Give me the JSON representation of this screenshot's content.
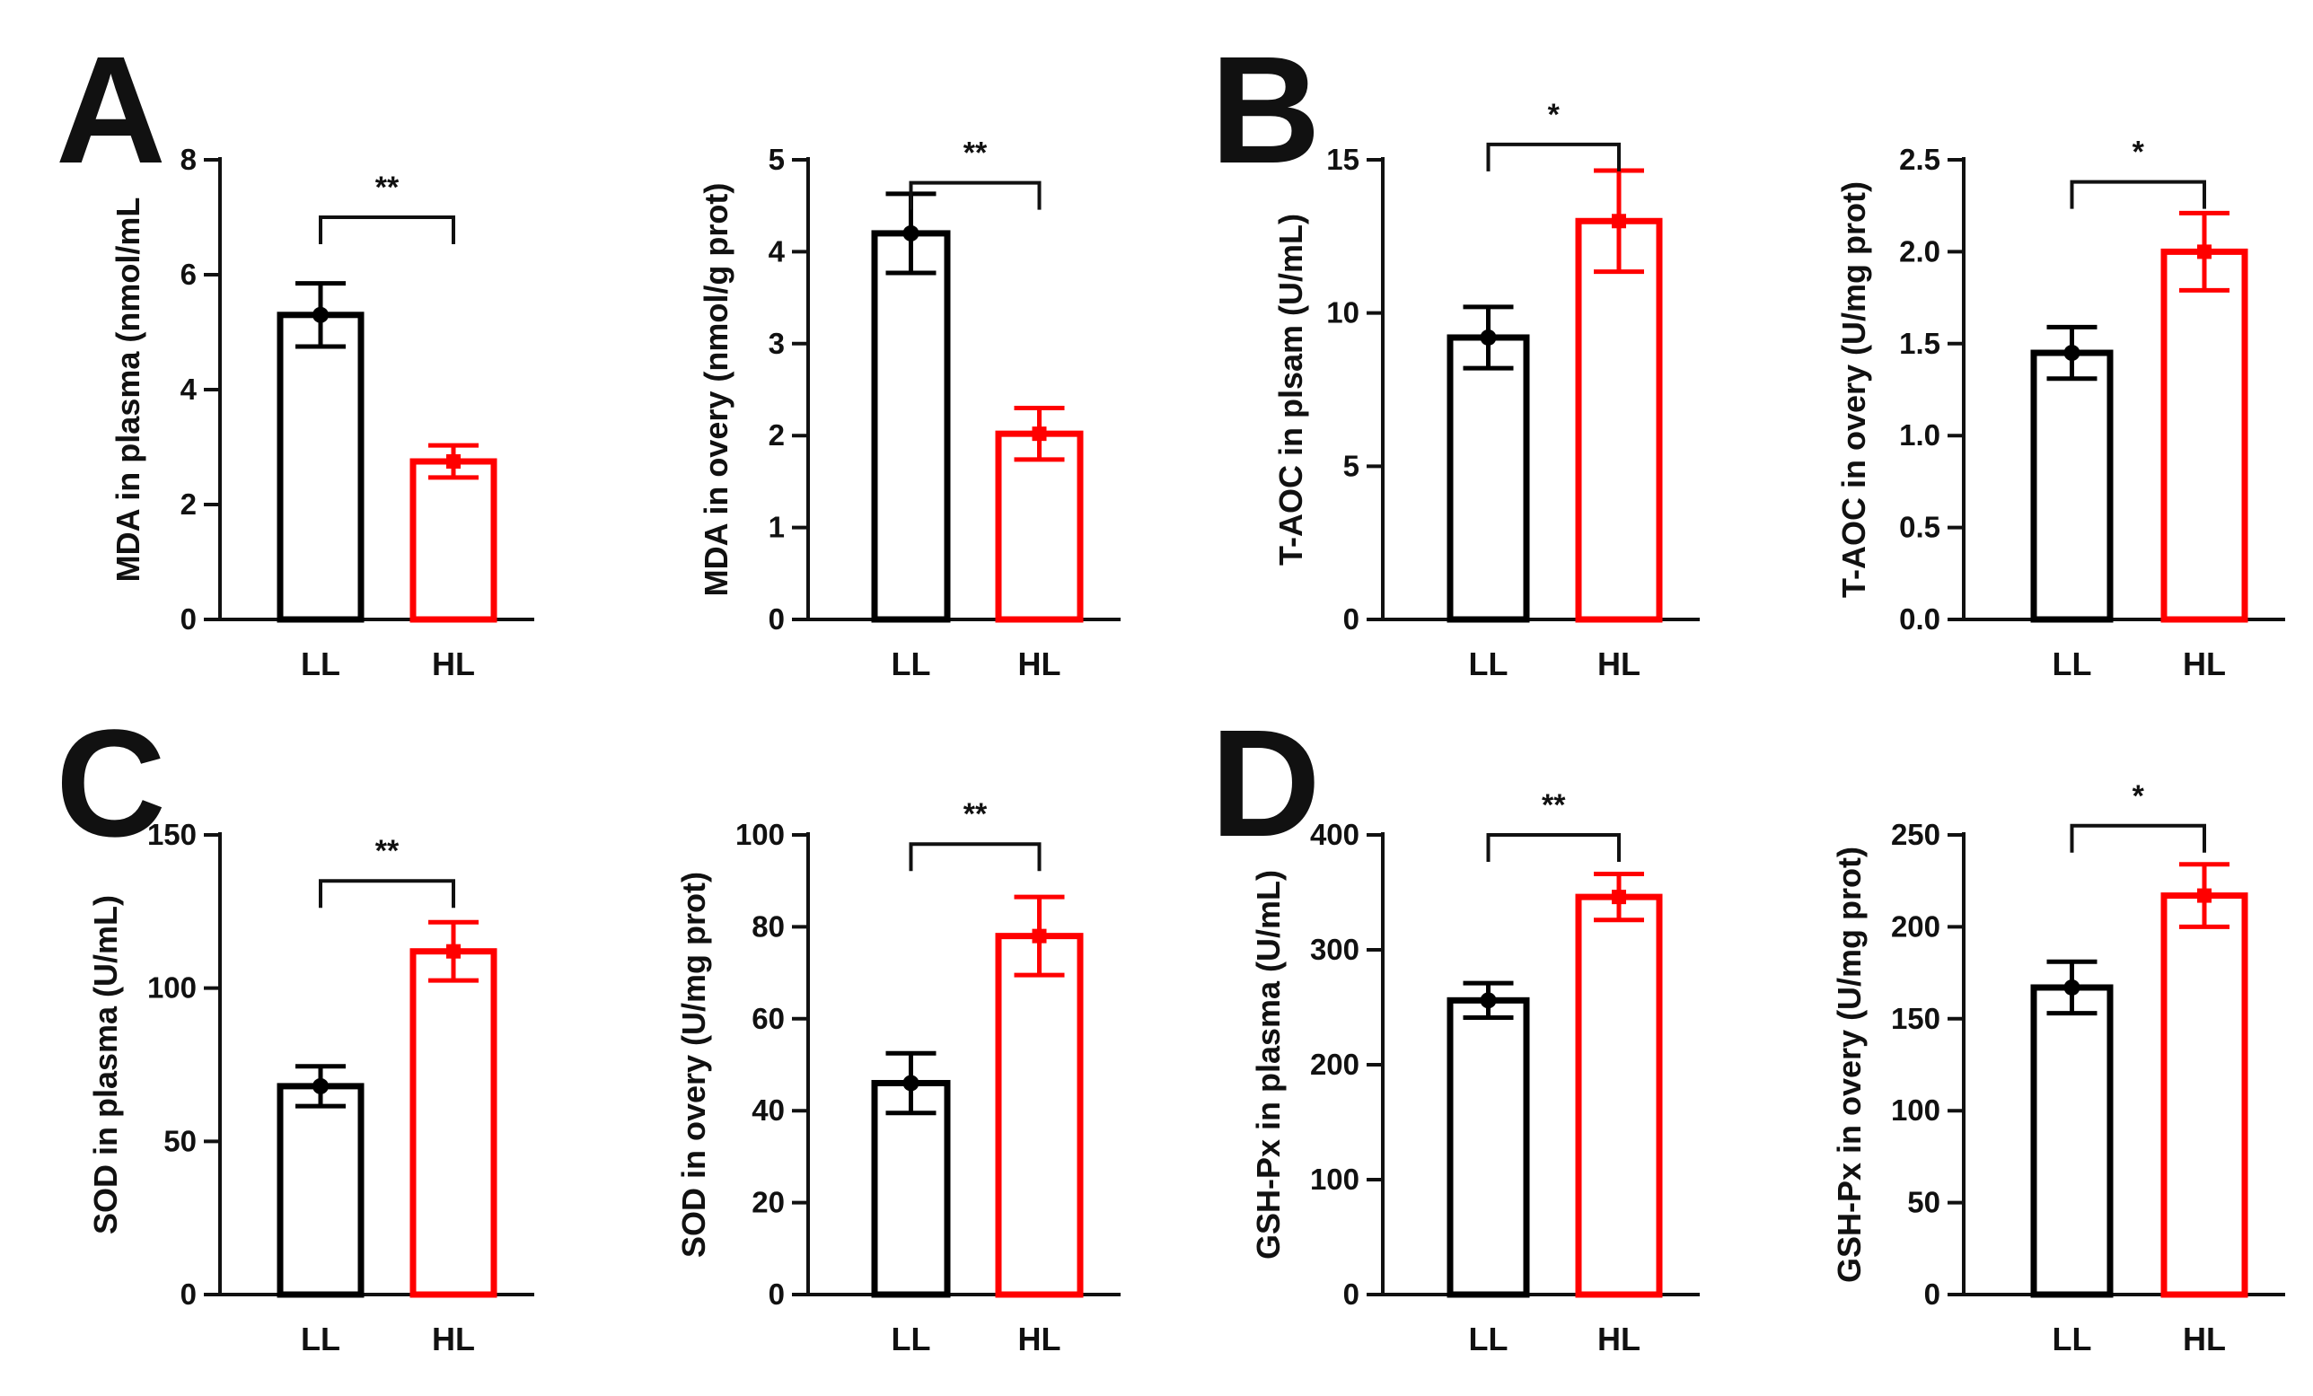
{
  "panels": [
    {
      "letter": "A"
    },
    {
      "letter": "B"
    },
    {
      "letter": "C"
    },
    {
      "letter": "D"
    }
  ],
  "colors": {
    "LL": "#000000",
    "HL": "#ff0000",
    "axis": "#111111"
  },
  "chart_data": [
    {
      "panel": "A",
      "type": "bar",
      "categories": [
        "LL",
        "HL"
      ],
      "values": [
        5.3,
        2.75
      ],
      "errors": [
        0.55,
        0.28
      ],
      "points": [
        5.3,
        2.75
      ],
      "ylabel": "MDA in plasma (nmol/mL",
      "xlabel": "",
      "ylim": [
        0,
        8
      ],
      "yticks": [
        0,
        2,
        4,
        6,
        8
      ],
      "significance": "**",
      "bracket_y": 7.0
    },
    {
      "panel": "A",
      "type": "bar",
      "categories": [
        "LL",
        "HL"
      ],
      "values": [
        4.2,
        2.02
      ],
      "errors": [
        0.43,
        0.28
      ],
      "points": [
        4.2,
        2.02
      ],
      "ylabel": "MDA in overy (nmol/g prot)",
      "xlabel": "",
      "ylim": [
        0,
        5
      ],
      "yticks": [
        0,
        1,
        2,
        3,
        4,
        5
      ],
      "significance": "**",
      "bracket_y": 4.75
    },
    {
      "panel": "B",
      "type": "bar",
      "categories": [
        "LL",
        "HL"
      ],
      "values": [
        9.2,
        13.0
      ],
      "errors": [
        1.0,
        1.65
      ],
      "points": [
        9.2,
        13.0
      ],
      "ylabel": "T-AOC in plsam (U/mL)",
      "xlabel": "",
      "ylim": [
        0,
        15
      ],
      "yticks": [
        0,
        5,
        10,
        15
      ],
      "significance": "*",
      "bracket_y": 15.5
    },
    {
      "panel": "B",
      "type": "bar",
      "categories": [
        "LL",
        "HL"
      ],
      "values": [
        1.45,
        2.0
      ],
      "errors": [
        0.14,
        0.21
      ],
      "points": [
        1.45,
        2.0
      ],
      "ylabel": "T-AOC in overy (U/mg prot)",
      "xlabel": "",
      "ylim": [
        0,
        2.5
      ],
      "yticks": [
        0.0,
        0.5,
        1.0,
        1.5,
        2.0,
        2.5
      ],
      "yticklabels": [
        "0.0",
        "0.5",
        "1.0",
        "1.5",
        "2.0",
        "2.5"
      ],
      "significance": "*",
      "bracket_y": 2.38
    },
    {
      "panel": "C",
      "type": "bar",
      "categories": [
        "LL",
        "HL"
      ],
      "values": [
        68,
        112
      ],
      "errors": [
        6.5,
        9.5
      ],
      "points": [
        68,
        112
      ],
      "ylabel": "SOD in plasma (U/mL)",
      "xlabel": "",
      "ylim": [
        0,
        150
      ],
      "yticks": [
        0,
        50,
        100,
        150
      ],
      "significance": "**",
      "bracket_y": 135
    },
    {
      "panel": "C",
      "type": "bar",
      "categories": [
        "LL",
        "HL"
      ],
      "values": [
        46,
        78
      ],
      "errors": [
        6.5,
        8.5
      ],
      "points": [
        46,
        78
      ],
      "ylabel": "SOD in overy (U/mg prot)",
      "xlabel": "",
      "ylim": [
        0,
        100
      ],
      "yticks": [
        0,
        20,
        40,
        60,
        80,
        100
      ],
      "significance": "**",
      "bracket_y": 98
    },
    {
      "panel": "D",
      "type": "bar",
      "categories": [
        "LL",
        "HL"
      ],
      "values": [
        256,
        346
      ],
      "errors": [
        15,
        20
      ],
      "points": [
        256,
        346
      ],
      "ylabel": "GSH-Px in plasma (U/mL)",
      "xlabel": "",
      "ylim": [
        0,
        400
      ],
      "yticks": [
        0,
        100,
        200,
        300,
        400
      ],
      "significance": "**",
      "bracket_y": 400
    },
    {
      "panel": "D",
      "type": "bar",
      "categories": [
        "LL",
        "HL"
      ],
      "values": [
        167,
        217
      ],
      "errors": [
        14,
        17
      ],
      "points": [
        167,
        217
      ],
      "ylabel": "GSH-Px in overy (U/mg prot)",
      "xlabel": "",
      "ylim": [
        0,
        250
      ],
      "yticks": [
        0,
        50,
        100,
        150,
        200,
        250
      ],
      "significance": "*",
      "bracket_y": 255
    }
  ]
}
